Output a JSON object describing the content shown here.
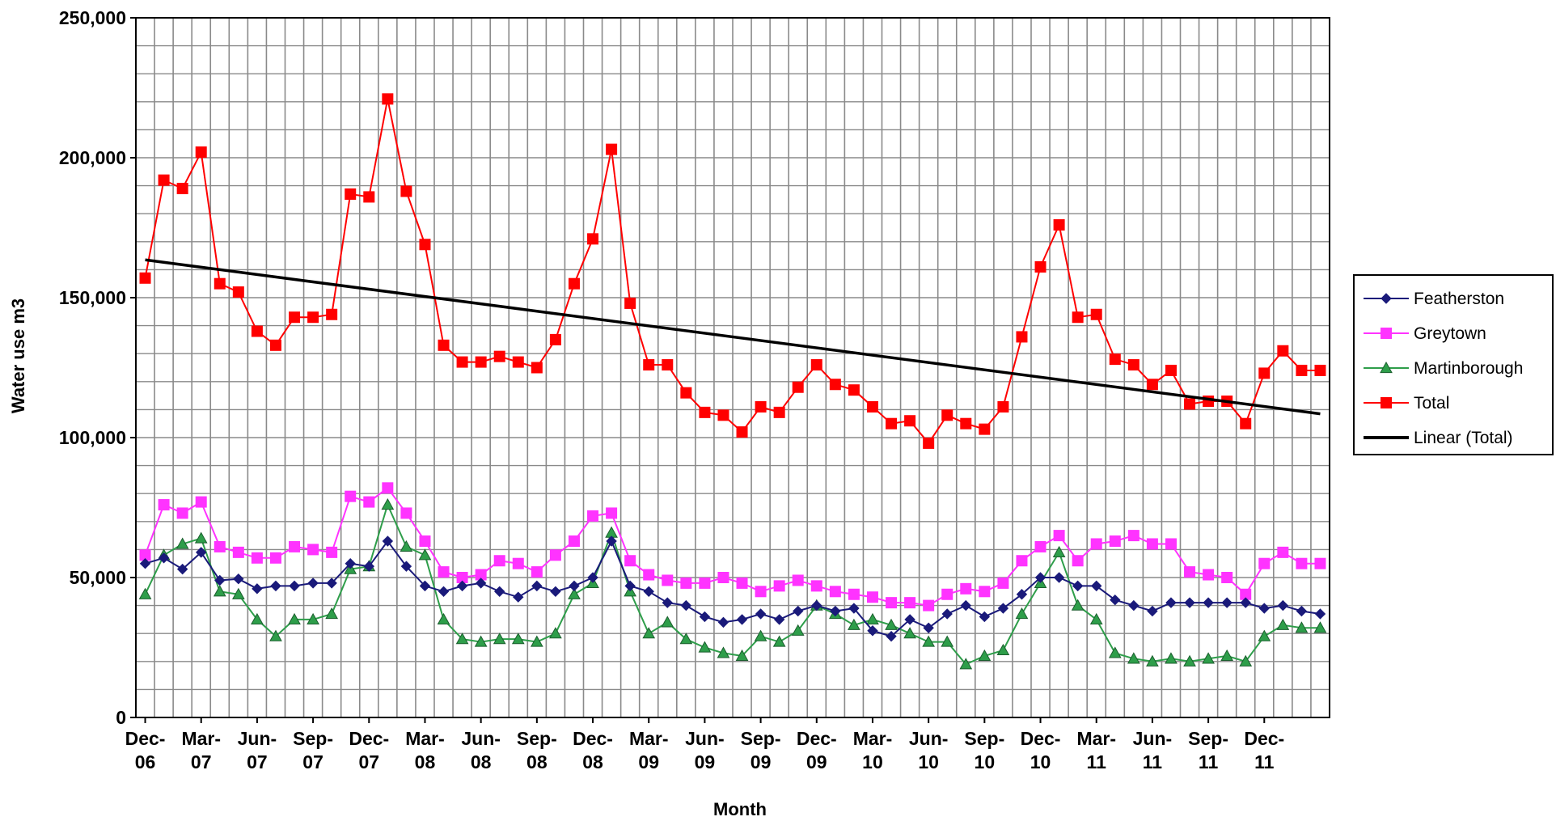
{
  "chart_data": {
    "type": "line",
    "title": "",
    "xlabel": "Month",
    "ylabel": "Water use m3",
    "ylim": [
      0,
      250000
    ],
    "y_ticks": [
      0,
      50000,
      100000,
      150000,
      200000,
      250000
    ],
    "y_tick_labels": [
      "0",
      "50,000",
      "100,000",
      "150,000",
      "200,000",
      "250,000"
    ],
    "grid": true,
    "legend_position": "right",
    "x_tick_labels": [
      {
        "line1": "Dec-",
        "line2": "06"
      },
      {
        "line1": "Mar-",
        "line2": "07"
      },
      {
        "line1": "Jun-",
        "line2": "07"
      },
      {
        "line1": "Sep-",
        "line2": "07"
      },
      {
        "line1": "Dec-",
        "line2": "07"
      },
      {
        "line1": "Mar-",
        "line2": "08"
      },
      {
        "line1": "Jun-",
        "line2": "08"
      },
      {
        "line1": "Sep-",
        "line2": "08"
      },
      {
        "line1": "Dec-",
        "line2": "08"
      },
      {
        "line1": "Mar-",
        "line2": "09"
      },
      {
        "line1": "Jun-",
        "line2": "09"
      },
      {
        "line1": "Sep-",
        "line2": "09"
      },
      {
        "line1": "Dec-",
        "line2": "09"
      },
      {
        "line1": "Mar-",
        "line2": "10"
      },
      {
        "line1": "Jun-",
        "line2": "10"
      },
      {
        "line1": "Sep-",
        "line2": "10"
      },
      {
        "line1": "Dec-",
        "line2": "10"
      },
      {
        "line1": "Mar-",
        "line2": "11"
      },
      {
        "line1": "Jun-",
        "line2": "11"
      },
      {
        "line1": "Sep-",
        "line2": "11"
      },
      {
        "line1": "Dec-",
        "line2": "11"
      }
    ],
    "categories": [
      "Dec-06",
      "Jan-07",
      "Feb-07",
      "Mar-07",
      "Apr-07",
      "May-07",
      "Jun-07",
      "Jul-07",
      "Aug-07",
      "Sep-07",
      "Oct-07",
      "Nov-07",
      "Dec-07",
      "Jan-08",
      "Feb-08",
      "Mar-08",
      "Apr-08",
      "May-08",
      "Jun-08",
      "Jul-08",
      "Aug-08",
      "Sep-08",
      "Oct-08",
      "Nov-08",
      "Dec-08",
      "Jan-09",
      "Feb-09",
      "Mar-09",
      "Apr-09",
      "May-09",
      "Jun-09",
      "Jul-09",
      "Aug-09",
      "Sep-09",
      "Oct-09",
      "Nov-09",
      "Dec-09",
      "Jan-10",
      "Feb-10",
      "Mar-10",
      "Apr-10",
      "May-10",
      "Jun-10",
      "Jul-10",
      "Aug-10",
      "Sep-10",
      "Oct-10",
      "Nov-10",
      "Dec-10",
      "Jan-11",
      "Feb-11",
      "Mar-11",
      "Apr-11",
      "May-11",
      "Jun-11",
      "Jul-11",
      "Aug-11",
      "Sep-11",
      "Oct-11",
      "Nov-11",
      "Dec-11",
      "Jan-12",
      "Feb-12",
      "Mar-12"
    ],
    "series": [
      {
        "name": "Featherston",
        "color": "#1a1a7a",
        "marker": "diamond",
        "values": [
          55000,
          57000,
          53000,
          59000,
          49000,
          49500,
          46000,
          47000,
          47000,
          48000,
          48000,
          55000,
          54000,
          63000,
          54000,
          47000,
          45000,
          47000,
          48000,
          45000,
          43000,
          47000,
          45000,
          47000,
          50000,
          63000,
          47000,
          45000,
          41000,
          40000,
          36000,
          34000,
          35000,
          37000,
          35000,
          38000,
          40000,
          38000,
          39000,
          31000,
          29000,
          35000,
          32000,
          37000,
          40000,
          36000,
          39000,
          44000,
          50000,
          50000,
          47000,
          47000,
          42000,
          40000,
          38000,
          41000,
          41000,
          41000,
          41000,
          41000,
          39000,
          40000,
          38000,
          37000
        ]
      },
      {
        "name": "Greytown",
        "color": "#ff33ff",
        "marker": "square",
        "values": [
          58000,
          76000,
          73000,
          77000,
          61000,
          59000,
          57000,
          57000,
          61000,
          60000,
          59000,
          79000,
          77000,
          82000,
          73000,
          63000,
          52000,
          50000,
          51000,
          56000,
          55000,
          52000,
          58000,
          63000,
          72000,
          73000,
          56000,
          51000,
          49000,
          48000,
          48000,
          50000,
          48000,
          45000,
          47000,
          49000,
          47000,
          45000,
          44000,
          43000,
          41000,
          41000,
          40000,
          44000,
          46000,
          45000,
          48000,
          56000,
          61000,
          65000,
          56000,
          62000,
          63000,
          65000,
          62000,
          62000,
          52000,
          51000,
          50000,
          44000,
          55000,
          59000,
          55000,
          55000
        ]
      },
      {
        "name": "Martinborough",
        "color": "#2e9e4a",
        "marker": "triangle",
        "values": [
          44000,
          58000,
          62000,
          64000,
          45000,
          44000,
          35000,
          29000,
          35000,
          35000,
          37000,
          53000,
          54000,
          76000,
          61000,
          58000,
          35000,
          28000,
          27000,
          28000,
          28000,
          27000,
          30000,
          44000,
          48000,
          66000,
          45000,
          30000,
          34000,
          28000,
          25000,
          23000,
          22000,
          29000,
          27000,
          31000,
          40000,
          37000,
          33000,
          35000,
          33000,
          30000,
          27000,
          27000,
          19000,
          22000,
          24000,
          37000,
          48000,
          59000,
          40000,
          35000,
          23000,
          21000,
          20000,
          21000,
          20000,
          21000,
          22000,
          20000,
          29000,
          33000,
          32000,
          32000
        ]
      },
      {
        "name": "Total",
        "color": "#ff0000",
        "marker": "square",
        "values": [
          157000,
          192000,
          189000,
          202000,
          155000,
          152000,
          138000,
          133000,
          143000,
          143000,
          144000,
          187000,
          186000,
          221000,
          188000,
          169000,
          133000,
          127000,
          127000,
          129000,
          127000,
          125000,
          135000,
          155000,
          171000,
          203000,
          148000,
          126000,
          126000,
          116000,
          109000,
          108000,
          102000,
          111000,
          109000,
          118000,
          126000,
          119000,
          117000,
          111000,
          105000,
          106000,
          98000,
          108000,
          105000,
          103000,
          111000,
          136000,
          161000,
          176000,
          143000,
          144000,
          128000,
          126000,
          119000,
          124000,
          112000,
          113000,
          113000,
          105000,
          123000,
          131000,
          124000,
          124000
        ]
      }
    ],
    "trendline": {
      "name": "Linear (Total)",
      "color": "#000000",
      "start_value": 163500,
      "end_value": 108500
    }
  }
}
